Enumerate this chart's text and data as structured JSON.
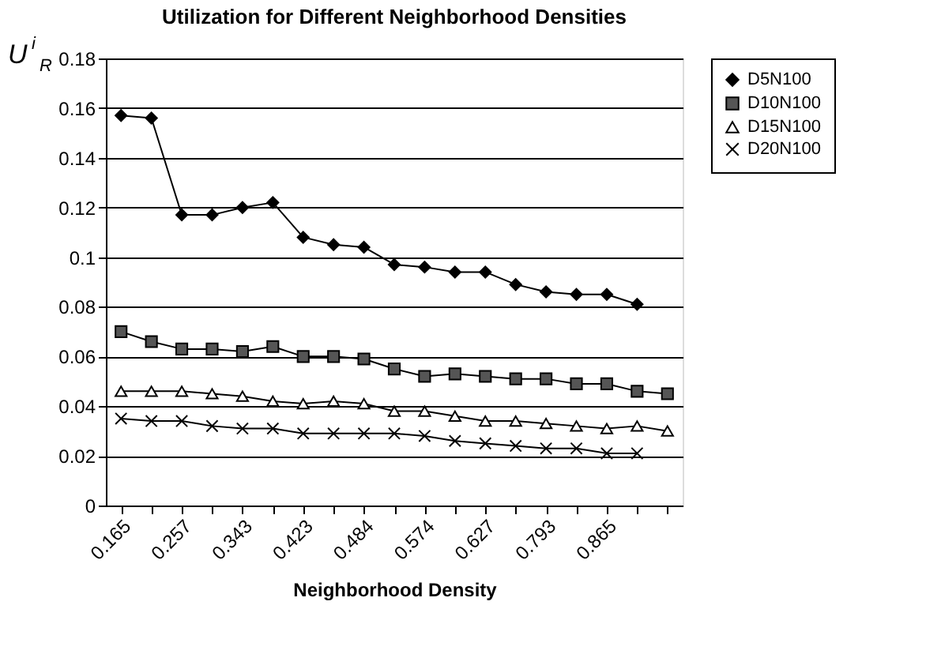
{
  "chart_data": {
    "type": "line",
    "title": "Utilization for Different Neighborhood Densities",
    "xlabel": "Neighborhood Density",
    "ylabel": "U$^{i}$$_{R}$",
    "categories": [
      "0.165",
      null,
      "0.257",
      null,
      "0.343",
      null,
      "0.423",
      null,
      "0.484",
      null,
      "0.574",
      null,
      "0.627",
      null,
      "0.793",
      null,
      "0.865",
      null,
      null
    ],
    "series": [
      {
        "name": "D5N100",
        "color": "#000000",
        "marker": "diamond",
        "values": [
          0.157,
          0.156,
          0.117,
          0.117,
          0.12,
          0.122,
          0.108,
          0.105,
          0.104,
          0.097,
          0.096,
          0.094,
          0.094,
          0.089,
          0.086,
          0.085,
          0.085,
          0.081,
          null
        ]
      },
      {
        "name": "D10N100",
        "color": "#000000",
        "marker": "square",
        "values": [
          0.07,
          0.066,
          0.063,
          0.063,
          0.062,
          0.064,
          0.06,
          0.06,
          0.059,
          0.055,
          0.052,
          0.053,
          0.052,
          0.051,
          0.051,
          0.049,
          0.049,
          0.046,
          0.045
        ]
      },
      {
        "name": "D15N100",
        "color": "#000000",
        "marker": "triangle",
        "values": [
          0.046,
          0.046,
          0.046,
          0.045,
          0.044,
          0.042,
          0.041,
          0.042,
          0.041,
          0.038,
          0.038,
          0.036,
          0.034,
          0.034,
          0.033,
          0.032,
          0.031,
          0.032,
          0.03
        ]
      },
      {
        "name": "D20N100",
        "color": "#000000",
        "marker": "cross",
        "values": [
          0.035,
          0.034,
          0.034,
          0.032,
          0.031,
          0.031,
          0.029,
          0.029,
          0.029,
          0.029,
          0.028,
          0.026,
          0.025,
          0.024,
          0.023,
          0.023,
          0.021,
          0.021,
          null
        ]
      }
    ],
    "ylim": [
      0,
      0.18
    ],
    "yticks": [
      0,
      0.02,
      0.04,
      0.06,
      0.08,
      0.1,
      0.12,
      0.14,
      0.16,
      0.18
    ],
    "grid": "y",
    "legend": "right",
    "line_style": "solid"
  }
}
